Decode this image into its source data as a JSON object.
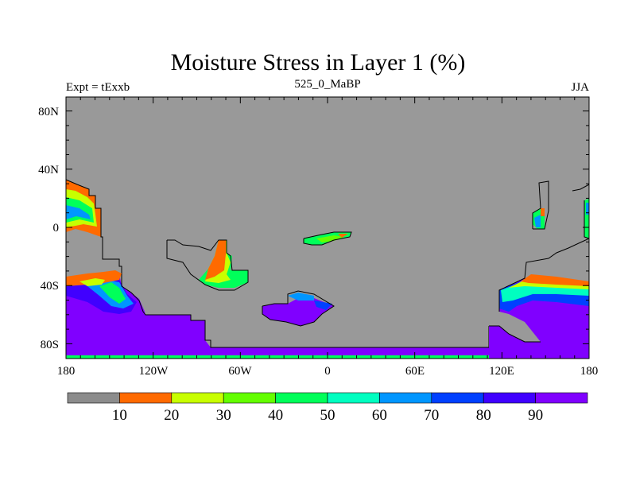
{
  "title": "Moisture Stress in Layer 1 (%)",
  "subtitle_left": "Expt = tExxb",
  "subtitle_center": "525_0_MaBP",
  "subtitle_right": "JJA",
  "y_axis_labels": [
    "80N",
    "40N",
    "0",
    "40S",
    "80S"
  ],
  "x_axis_labels": [
    "180",
    "120W",
    "60W",
    "0",
    "60E",
    "120E",
    "180"
  ],
  "colorbar": {
    "labels": [
      "10",
      "20",
      "30",
      "40",
      "50",
      "60",
      "70",
      "80",
      "90"
    ],
    "colors": [
      "#8c8c8c",
      "#ff6a00",
      "#c8ff00",
      "#64ff00",
      "#00ff5a",
      "#00ffc0",
      "#0096ff",
      "#0040ff",
      "#4000ff",
      "#8000ff"
    ]
  },
  "colors": {
    "land": "#999999",
    "outline": "#000000"
  }
}
